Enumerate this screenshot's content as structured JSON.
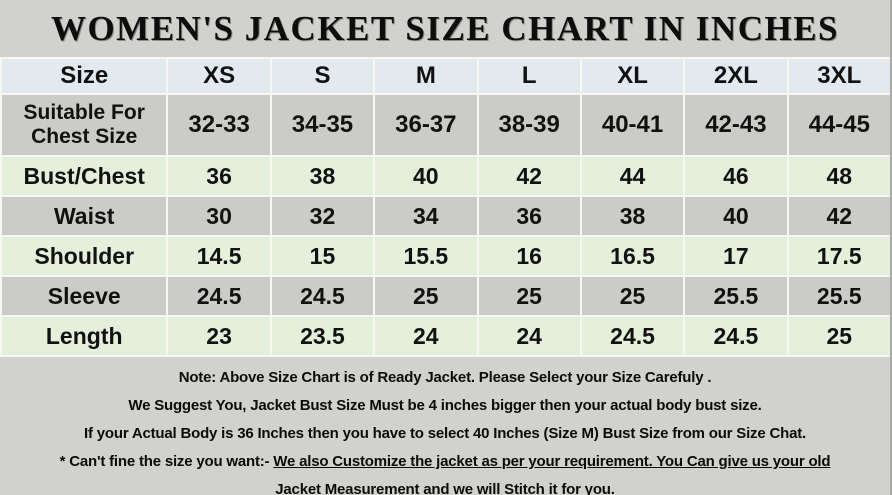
{
  "title": "WOMEN'S JACKET SIZE CHART IN INCHES",
  "table": {
    "header": [
      "Size",
      "XS",
      "S",
      "M",
      "L",
      "XL",
      "2XL",
      "3XL"
    ],
    "rows": [
      {
        "label": "Suitable For Chest Size",
        "values": [
          "32-33",
          "34-35",
          "36-37",
          "38-39",
          "40-41",
          "42-43",
          "44-45"
        ]
      },
      {
        "label": "Bust/Chest",
        "values": [
          "36",
          "38",
          "40",
          "42",
          "44",
          "46",
          "48"
        ]
      },
      {
        "label": "Waist",
        "values": [
          "30",
          "32",
          "34",
          "36",
          "38",
          "40",
          "42"
        ]
      },
      {
        "label": "Shoulder",
        "values": [
          "14.5",
          "15",
          "15.5",
          "16",
          "16.5",
          "17",
          "17.5"
        ]
      },
      {
        "label": "Sleeve",
        "values": [
          "24.5",
          "24.5",
          "25",
          "25",
          "25",
          "25.5",
          "25.5"
        ]
      },
      {
        "label": "Length",
        "values": [
          "23",
          "23.5",
          "24",
          "24",
          "24.5",
          "24.5",
          "25"
        ]
      }
    ]
  },
  "notes": {
    "line1": "Note: Above Size Chart is of Ready Jacket. Please Select your Size Carefuly .",
    "line2": "We Suggest You, Jacket Bust Size Must be 4 inches bigger then your actual body bust size.",
    "line3": "If your Actual Body is 36 Inches then you have to select 40 Inches (Size M) Bust Size from our Size Chat.",
    "line4_prefix": "* Can't fine the size you want:- ",
    "line4_underlined": "We also Customize the jacket as per your requirement. You Can give us your old",
    "line5_underlined": "Jacket Measurement and we will Stitch it for you."
  },
  "colors": {
    "page_background": "#d1d1ce",
    "header_row_background": "#e2eaf0",
    "gray_row_background": "#cbcbc7",
    "green_row_background": "#e5f0dc",
    "gridline": "#f7f7f4",
    "table_left_border": "#151515",
    "text": "#111111"
  }
}
